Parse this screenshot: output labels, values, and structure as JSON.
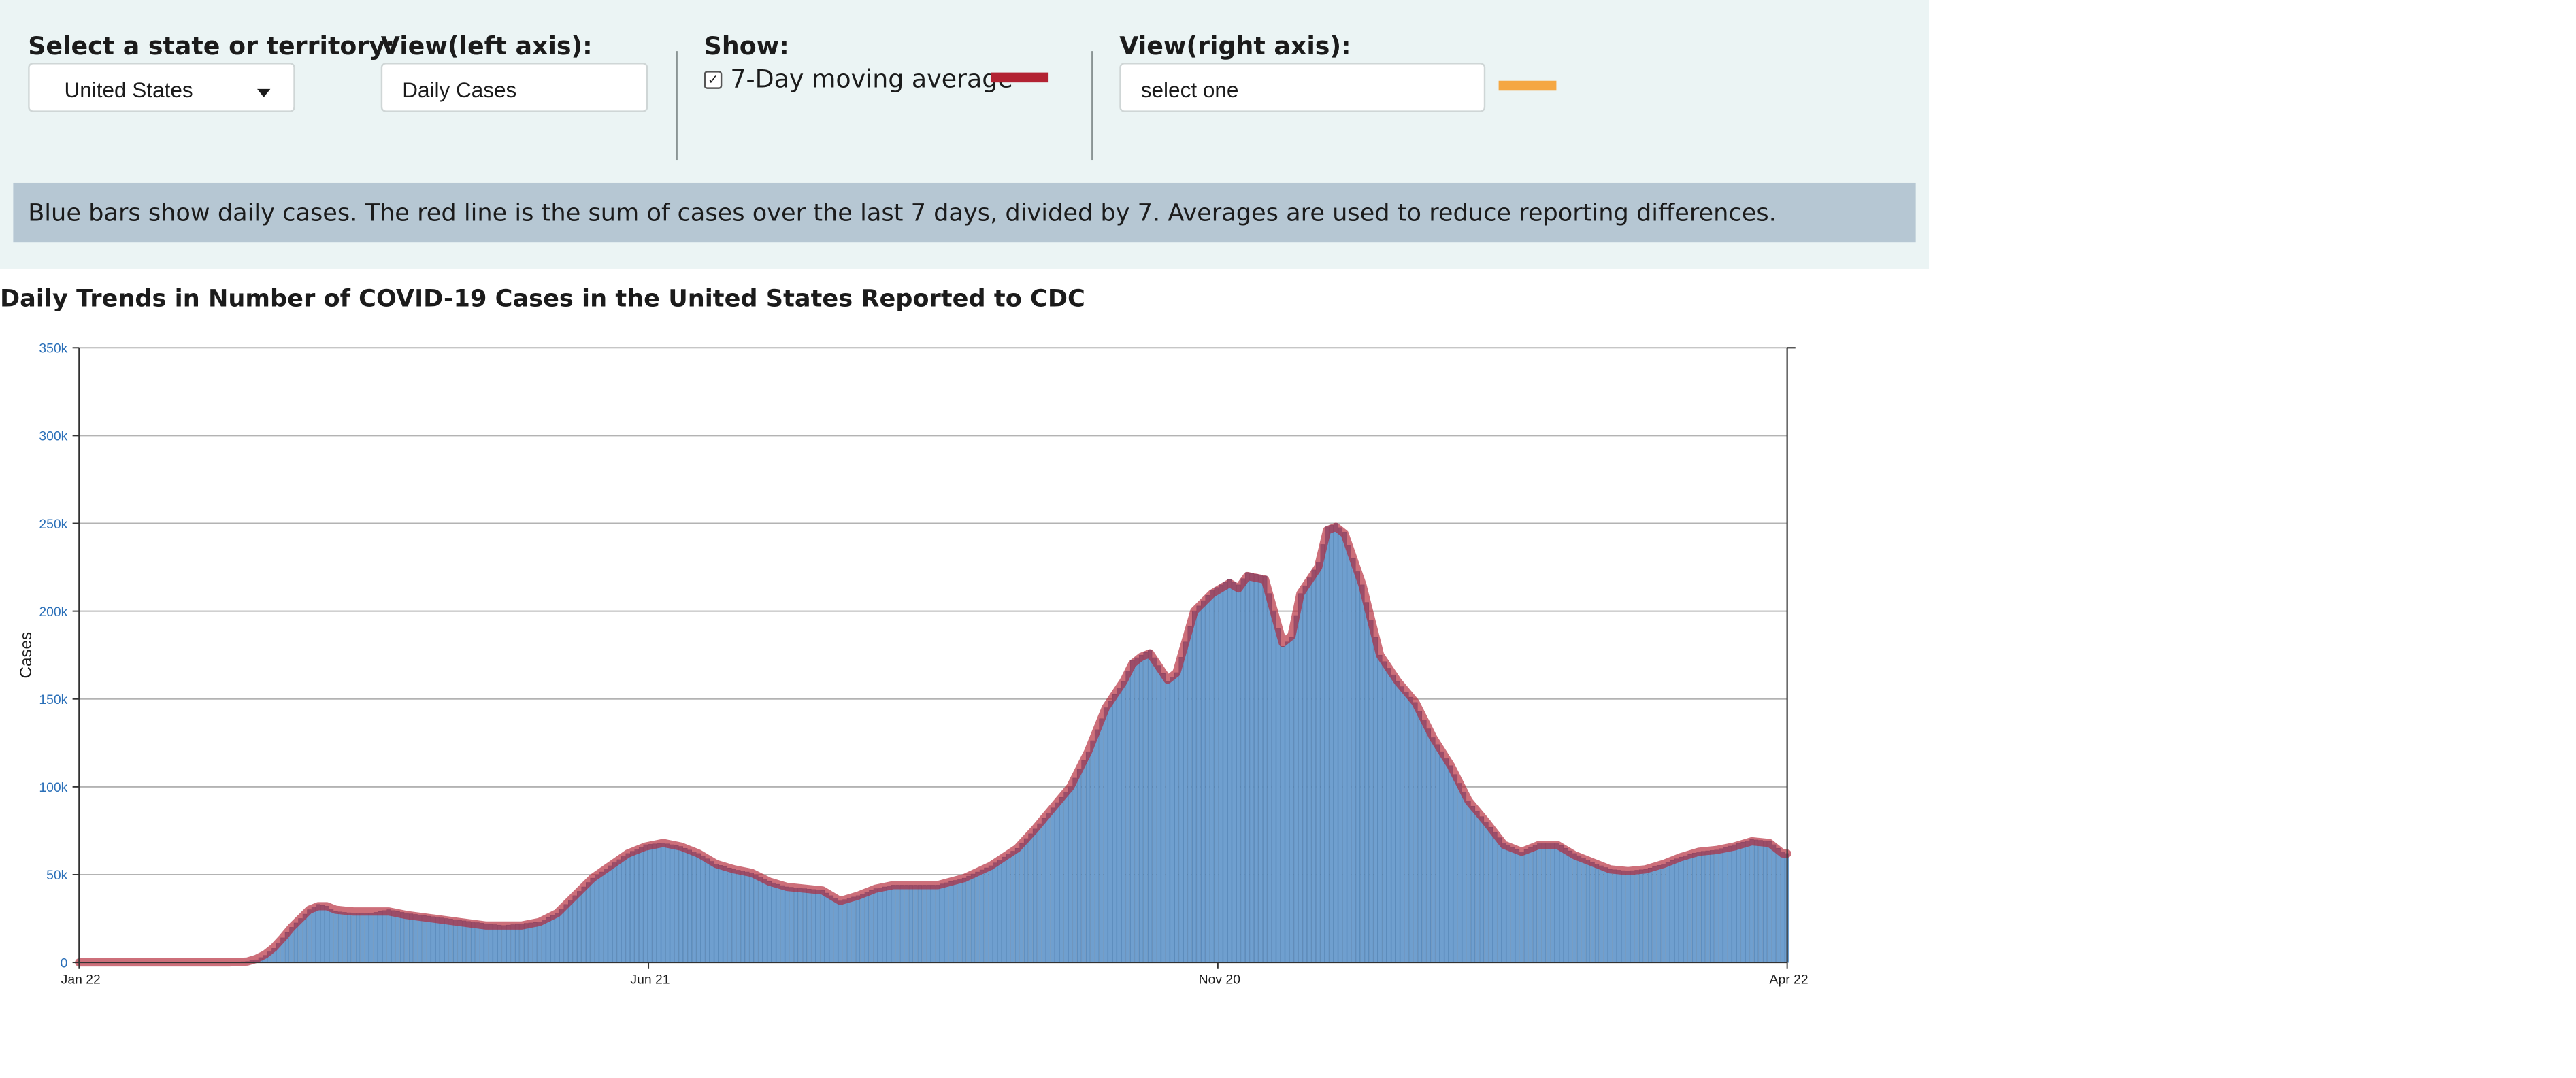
{
  "controls": {
    "state_label": "Select a state or territory:",
    "state_value": "United States",
    "left_axis_label": "View(left axis):",
    "left_axis_value": "Daily Cases",
    "show_label": "Show:",
    "moving_avg_label": "7-Day moving average",
    "moving_avg_checked": true,
    "right_axis_label": "View(right axis):",
    "right_axis_value": "select one"
  },
  "colors": {
    "bar": "#6f9fcf",
    "moving_avg": "#b22232",
    "right_axis": "#f5a742"
  },
  "info_text": "Blue bars show daily cases. The red line is the sum of cases over the last 7 days, divided by 7. Averages are used to reduce reporting differences.",
  "chart_data": {
    "type": "bar",
    "title": "Daily Trends in Number of COVID-19 Cases in the United States Reported to CDC",
    "ylabel": "Cases",
    "xlabel": "",
    "ylim": [
      0,
      350000
    ],
    "y_ticks": [
      0,
      50000,
      100000,
      150000,
      200000,
      250000,
      300000,
      350000
    ],
    "y_tick_labels": [
      "0",
      "50k",
      "100k",
      "150k",
      "200k",
      "250k",
      "300k",
      "350k"
    ],
    "x_tick_labels": [
      "Jan 22",
      "Jun 21",
      "Nov 20",
      "Apr 22"
    ],
    "grid": true,
    "series": [
      {
        "name": "Daily cases",
        "type": "bar",
        "points": [
          [
            0,
            0
          ],
          [
            34,
            0
          ],
          [
            38,
            500
          ],
          [
            40,
            1500
          ],
          [
            42,
            4000
          ],
          [
            44,
            8000
          ],
          [
            46,
            14000
          ],
          [
            48,
            20000
          ],
          [
            50,
            25000
          ],
          [
            52,
            30000
          ],
          [
            54,
            33000
          ],
          [
            56,
            32000
          ],
          [
            58,
            29000
          ],
          [
            62,
            28000
          ],
          [
            66,
            28000
          ],
          [
            70,
            30000
          ],
          [
            74,
            28000
          ],
          [
            80,
            26000
          ],
          [
            86,
            24000
          ],
          [
            92,
            22000
          ],
          [
            96,
            21000
          ],
          [
            100,
            22000
          ],
          [
            104,
            23000
          ],
          [
            108,
            28000
          ],
          [
            112,
            38000
          ],
          [
            116,
            48000
          ],
          [
            120,
            55000
          ],
          [
            124,
            62000
          ],
          [
            128,
            67000
          ],
          [
            132,
            68000
          ],
          [
            136,
            66000
          ],
          [
            140,
            62000
          ],
          [
            144,
            56000
          ],
          [
            148,
            53000
          ],
          [
            152,
            51000
          ],
          [
            156,
            46000
          ],
          [
            160,
            43000
          ],
          [
            164,
            42000
          ],
          [
            168,
            41000
          ],
          [
            172,
            35000
          ],
          [
            176,
            38000
          ],
          [
            180,
            42000
          ],
          [
            184,
            44000
          ],
          [
            188,
            44000
          ],
          [
            194,
            44000
          ],
          [
            200,
            48000
          ],
          [
            206,
            55000
          ],
          [
            212,
            65000
          ],
          [
            216,
            76000
          ],
          [
            220,
            88000
          ],
          [
            224,
            100000
          ],
          [
            228,
            120000
          ],
          [
            232,
            145000
          ],
          [
            236,
            160000
          ],
          [
            238,
            172000
          ],
          [
            240,
            175000
          ],
          [
            242,
            178000
          ],
          [
            246,
            160000
          ],
          [
            248,
            165000
          ],
          [
            252,
            200000
          ],
          [
            256,
            212000
          ],
          [
            260,
            218000
          ],
          [
            262,
            215000
          ],
          [
            264,
            222000
          ],
          [
            268,
            220000
          ],
          [
            270,
            200000
          ],
          [
            272,
            180000
          ],
          [
            274,
            185000
          ],
          [
            276,
            210000
          ],
          [
            280,
            228000
          ],
          [
            282,
            248000
          ],
          [
            284,
            250000
          ],
          [
            286,
            245000
          ],
          [
            290,
            215000
          ],
          [
            292,
            195000
          ],
          [
            294,
            175000
          ],
          [
            298,
            160000
          ],
          [
            302,
            148000
          ],
          [
            306,
            128000
          ],
          [
            310,
            112000
          ],
          [
            314,
            92000
          ],
          [
            318,
            80000
          ],
          [
            322,
            68000
          ],
          [
            326,
            63000
          ],
          [
            330,
            68000
          ],
          [
            334,
            68000
          ],
          [
            338,
            62000
          ],
          [
            342,
            57000
          ],
          [
            346,
            53000
          ],
          [
            350,
            52000
          ],
          [
            354,
            53000
          ],
          [
            358,
            56000
          ],
          [
            362,
            60000
          ],
          [
            366,
            63000
          ],
          [
            370,
            64000
          ],
          [
            374,
            67000
          ],
          [
            378,
            70000
          ],
          [
            382,
            69000
          ],
          [
            385,
            63000
          ],
          [
            386,
            62000
          ]
        ]
      },
      {
        "name": "7-Day moving average",
        "type": "line",
        "points": [
          [
            0,
            0
          ],
          [
            34,
            0
          ],
          [
            38,
            500
          ],
          [
            40,
            2000
          ],
          [
            42,
            4500
          ],
          [
            44,
            8500
          ],
          [
            46,
            14000
          ],
          [
            48,
            20000
          ],
          [
            50,
            25000
          ],
          [
            52,
            30000
          ],
          [
            54,
            32000
          ],
          [
            56,
            32000
          ],
          [
            58,
            30000
          ],
          [
            62,
            29000
          ],
          [
            66,
            29000
          ],
          [
            70,
            29000
          ],
          [
            74,
            27000
          ],
          [
            80,
            25000
          ],
          [
            86,
            23000
          ],
          [
            92,
            21000
          ],
          [
            96,
            21000
          ],
          [
            100,
            21000
          ],
          [
            104,
            23000
          ],
          [
            108,
            28000
          ],
          [
            112,
            38000
          ],
          [
            116,
            48000
          ],
          [
            120,
            55000
          ],
          [
            124,
            62000
          ],
          [
            128,
            66000
          ],
          [
            132,
            68000
          ],
          [
            136,
            66000
          ],
          [
            140,
            62000
          ],
          [
            144,
            56000
          ],
          [
            148,
            53000
          ],
          [
            152,
            51000
          ],
          [
            156,
            46000
          ],
          [
            160,
            43000
          ],
          [
            164,
            42000
          ],
          [
            168,
            41000
          ],
          [
            172,
            35000
          ],
          [
            176,
            38000
          ],
          [
            180,
            42000
          ],
          [
            184,
            44000
          ],
          [
            188,
            44000
          ],
          [
            194,
            44000
          ],
          [
            200,
            48000
          ],
          [
            206,
            55000
          ],
          [
            212,
            65000
          ],
          [
            216,
            76000
          ],
          [
            220,
            88000
          ],
          [
            224,
            100000
          ],
          [
            228,
            120000
          ],
          [
            232,
            145000
          ],
          [
            236,
            160000
          ],
          [
            238,
            170000
          ],
          [
            240,
            174000
          ],
          [
            242,
            176000
          ],
          [
            246,
            161000
          ],
          [
            248,
            165000
          ],
          [
            252,
            200000
          ],
          [
            256,
            210000
          ],
          [
            260,
            216000
          ],
          [
            262,
            213000
          ],
          [
            264,
            220000
          ],
          [
            268,
            218000
          ],
          [
            270,
            200000
          ],
          [
            272,
            182000
          ],
          [
            274,
            186000
          ],
          [
            276,
            210000
          ],
          [
            280,
            225000
          ],
          [
            282,
            246000
          ],
          [
            284,
            248000
          ],
          [
            286,
            244000
          ],
          [
            290,
            215000
          ],
          [
            292,
            195000
          ],
          [
            294,
            175000
          ],
          [
            298,
            160000
          ],
          [
            302,
            148000
          ],
          [
            306,
            128000
          ],
          [
            310,
            112000
          ],
          [
            314,
            92000
          ],
          [
            318,
            80000
          ],
          [
            322,
            67000
          ],
          [
            326,
            63000
          ],
          [
            330,
            67000
          ],
          [
            334,
            67000
          ],
          [
            338,
            61000
          ],
          [
            342,
            57000
          ],
          [
            346,
            53000
          ],
          [
            350,
            52000
          ],
          [
            354,
            53000
          ],
          [
            358,
            56000
          ],
          [
            362,
            60000
          ],
          [
            366,
            63000
          ],
          [
            370,
            64000
          ],
          [
            374,
            66000
          ],
          [
            378,
            69000
          ],
          [
            382,
            68000
          ],
          [
            385,
            62000
          ],
          [
            386,
            62000
          ]
        ]
      }
    ]
  }
}
